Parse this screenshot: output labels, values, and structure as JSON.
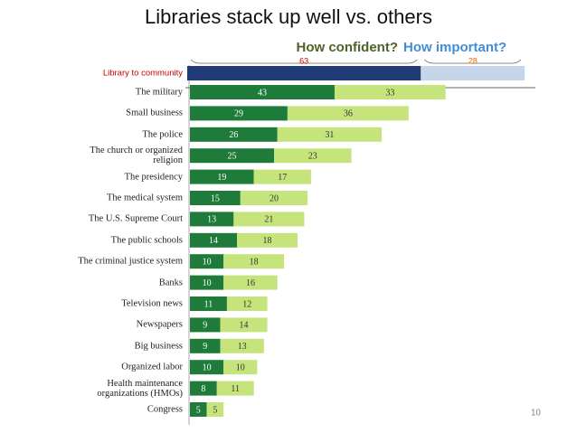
{
  "chart_data": {
    "type": "bar",
    "title": "Libraries stack up well vs. others",
    "library": {
      "label": "Library to community",
      "values": [
        63,
        28
      ],
      "colors": [
        "#1f3c78",
        "#c5d5ea"
      ],
      "label_colors": [
        "#c00000",
        "#e46c0a"
      ]
    },
    "categories": [
      "The military",
      "Small business",
      "The police",
      "The church or organized religion",
      "The presidency",
      "The medical system",
      "The U.S. Supreme Court",
      "The public schools",
      "The criminal justice system",
      "Banks",
      "Television news",
      "Newspapers",
      "Big business",
      "Organized labor",
      "Health maintenance organizations (HMOs)",
      "Congress"
    ],
    "series": [
      {
        "name": "How confident?",
        "color": "#1e7b3a",
        "values": [
          43,
          29,
          26,
          25,
          19,
          15,
          13,
          14,
          10,
          10,
          11,
          9,
          9,
          10,
          8,
          5
        ]
      },
      {
        "name": "How important?",
        "color": "#c6e47c",
        "values": [
          33,
          36,
          31,
          23,
          17,
          20,
          21,
          18,
          18,
          16,
          12,
          14,
          13,
          10,
          11,
          5
        ]
      }
    ]
  },
  "page_number": "10"
}
